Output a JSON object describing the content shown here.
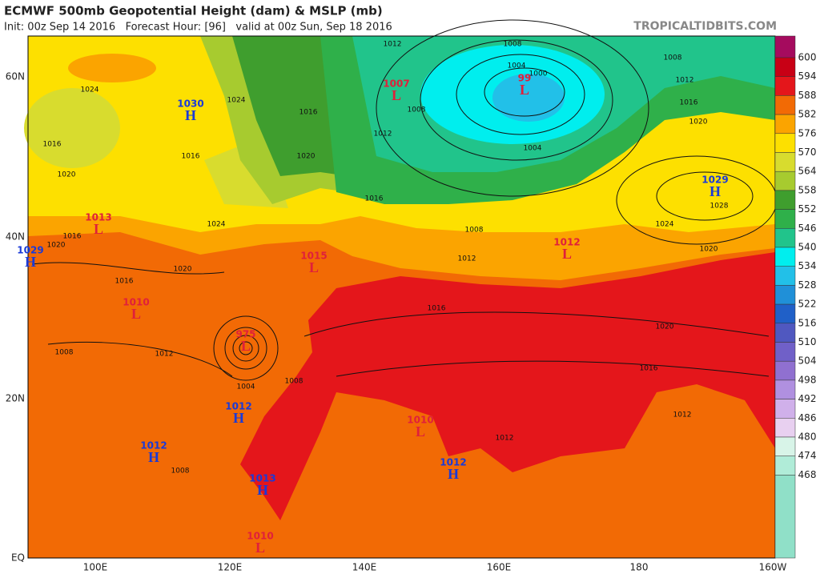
{
  "header": {
    "title": "ECMWF 500mb Geopotential Height (dam) & MSLP (mb)",
    "subtitle": "Init: 00z Sep 14 2016   Forecast Hour: [96]   valid at 00z Sun, Sep 18 2016",
    "site": "TROPICALTIDBITS.COM"
  },
  "colorbar": {
    "labels": [
      600,
      594,
      588,
      582,
      576,
      570,
      564,
      558,
      552,
      546,
      540,
      534,
      528,
      522,
      516,
      510,
      504,
      498,
      492,
      486,
      480,
      474,
      468
    ],
    "colors": [
      "#a50b5e",
      "#c80015",
      "#e4161b",
      "#f26a05",
      "#fba400",
      "#fde000",
      "#d8dc2e",
      "#a7cb2f",
      "#3f9e2e",
      "#2fb04a",
      "#21c48b",
      "#00eeee",
      "#22c0e8",
      "#2090d8",
      "#2060c8",
      "#5058c0",
      "#7060c8",
      "#9070d0",
      "#b090e0",
      "#d0b0ea",
      "#e8d0f0",
      "#d8f4e8",
      "#b0ecd8",
      "#90e0c8"
    ]
  },
  "axes": {
    "lat_labels": [
      "60N",
      "40N",
      "20N",
      "EQ"
    ],
    "lon_labels": [
      "100E",
      "120E",
      "140E",
      "160E",
      "180",
      "160W"
    ]
  },
  "pressure_centers": [
    {
      "letter": "H",
      "value": "1030"
    },
    {
      "letter": "L",
      "value": "1007"
    },
    {
      "letter": "L",
      "value": "99"
    },
    {
      "letter": "H",
      "value": "1029"
    },
    {
      "letter": "L",
      "value": "1013"
    },
    {
      "letter": "H",
      "value": "1029"
    },
    {
      "letter": "L",
      "value": "1015"
    },
    {
      "letter": "L",
      "value": "1012"
    },
    {
      "letter": "L",
      "value": "1010"
    },
    {
      "letter": "L",
      "value": "975"
    },
    {
      "letter": "H",
      "value": "1012"
    },
    {
      "letter": "L",
      "value": "1010"
    },
    {
      "letter": "H",
      "value": "1012"
    },
    {
      "letter": "H",
      "value": "1012"
    },
    {
      "letter": "H",
      "value": "1013"
    },
    {
      "letter": "L",
      "value": "1010"
    }
  ],
  "contour_labels": [
    "1008",
    "1012",
    "1004",
    "1000",
    "1008",
    "1012",
    "1016",
    "1020",
    "1008",
    "1004",
    "1024",
    "1024",
    "1016",
    "1020",
    "1012",
    "1016",
    "1020",
    "1016",
    "1008",
    "1012",
    "1024",
    "1028",
    "1020",
    "1016",
    "1020",
    "1016",
    "1012",
    "1012",
    "1008",
    "1004",
    "1012",
    "1008",
    "1016",
    "1020",
    "1024",
    "1016",
    "1008",
    "1016",
    "1020"
  ]
}
